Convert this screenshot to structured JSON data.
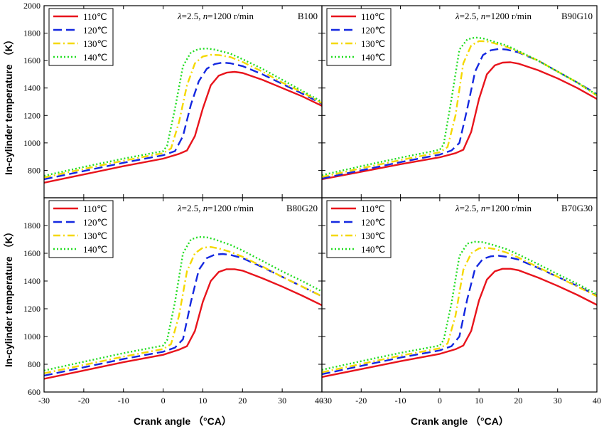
{
  "figure": {
    "ylabel": "In-cylinder temperature （K）",
    "xlabel": "Crank angle （°CA）"
  },
  "chart_data": [
    {
      "type": "line",
      "panel_label": "B100",
      "condition_text": "λ=2.5, n=1200 r/min",
      "xlim": [
        -30,
        40
      ],
      "ylim": [
        600,
        2000
      ],
      "x_ticks": [
        -30,
        -20,
        -10,
        0,
        10,
        20,
        30,
        40
      ],
      "y_ticks": [
        800,
        1000,
        1200,
        1400,
        1600,
        1800,
        2000
      ],
      "legend_position": "top-left",
      "series": [
        {
          "name": "110℃",
          "color": "#e8141c",
          "dash": "solid",
          "x": [
            -30,
            -20,
            -10,
            0,
            4,
            6,
            8,
            10,
            12,
            14,
            16,
            18,
            20,
            25,
            30,
            35,
            40
          ],
          "y": [
            710,
            770,
            830,
            885,
            920,
            945,
            1050,
            1250,
            1420,
            1490,
            1512,
            1518,
            1510,
            1460,
            1400,
            1340,
            1270
          ]
        },
        {
          "name": "120℃",
          "color": "#1428e0",
          "dash": "dash",
          "x": [
            -30,
            -20,
            -10,
            0,
            3,
            5,
            7,
            9,
            11,
            13,
            15,
            17,
            20,
            25,
            30,
            35,
            40
          ],
          "y": [
            735,
            795,
            855,
            910,
            940,
            1050,
            1280,
            1450,
            1540,
            1575,
            1585,
            1580,
            1560,
            1500,
            1430,
            1360,
            1285
          ]
        },
        {
          "name": "130℃",
          "color": "#f5d800",
          "dash": "dashdot",
          "x": [
            -30,
            -20,
            -10,
            0,
            2,
            4,
            6,
            8,
            10,
            12,
            14,
            17,
            20,
            25,
            30,
            35,
            40
          ],
          "y": [
            748,
            810,
            870,
            925,
            960,
            1150,
            1420,
            1580,
            1630,
            1642,
            1640,
            1625,
            1590,
            1520,
            1440,
            1370,
            1290
          ]
        },
        {
          "name": "140℃",
          "color": "#22dd22",
          "dash": "dot",
          "x": [
            -30,
            -20,
            -10,
            0,
            1,
            3,
            5,
            7,
            9,
            11,
            13,
            17,
            20,
            25,
            30,
            35,
            40
          ],
          "y": [
            760,
            825,
            885,
            940,
            980,
            1250,
            1560,
            1660,
            1685,
            1688,
            1680,
            1650,
            1610,
            1540,
            1460,
            1380,
            1300
          ]
        }
      ]
    },
    {
      "type": "line",
      "panel_label": "B90G10",
      "condition_text": "λ=2.5, n=1200 r/min",
      "xlim": [
        -30,
        40
      ],
      "ylim": [
        600,
        2000
      ],
      "x_ticks": [
        -30,
        -20,
        -10,
        0,
        10,
        20,
        30,
        40
      ],
      "y_ticks": [
        800,
        1000,
        1200,
        1400,
        1600,
        1800,
        2000
      ],
      "legend_position": "top-left",
      "series": [
        {
          "name": "110℃",
          "color": "#e8141c",
          "dash": "solid",
          "x": [
            -30,
            -20,
            -10,
            0,
            4,
            6,
            8,
            10,
            12,
            14,
            16,
            18,
            20,
            25,
            30,
            35,
            40
          ],
          "y": [
            735,
            790,
            845,
            895,
            925,
            950,
            1080,
            1320,
            1500,
            1565,
            1585,
            1588,
            1578,
            1530,
            1470,
            1400,
            1320
          ]
        },
        {
          "name": "120℃",
          "color": "#1428e0",
          "dash": "dash",
          "x": [
            -30,
            -20,
            -10,
            0,
            3,
            5,
            7,
            9,
            11,
            13,
            15,
            17,
            20,
            25,
            30,
            35,
            40
          ],
          "y": [
            740,
            800,
            860,
            915,
            945,
            1000,
            1250,
            1520,
            1640,
            1675,
            1685,
            1680,
            1660,
            1600,
            1520,
            1440,
            1355
          ]
        },
        {
          "name": "130℃",
          "color": "#f5d800",
          "dash": "dashdot",
          "x": [
            -30,
            -20,
            -10,
            0,
            2,
            4,
            6,
            8,
            10,
            12,
            14,
            17,
            20,
            25,
            30,
            35,
            40
          ],
          "y": [
            752,
            815,
            875,
            932,
            970,
            1200,
            1580,
            1710,
            1742,
            1740,
            1725,
            1700,
            1665,
            1600,
            1520,
            1440,
            1345
          ]
        },
        {
          "name": "140℃",
          "color": "#22dd22",
          "dash": "dot",
          "x": [
            -30,
            -20,
            -10,
            0,
            1,
            3,
            5,
            7,
            9,
            11,
            13,
            17,
            20,
            25,
            30,
            35,
            40
          ],
          "y": [
            765,
            830,
            892,
            950,
            990,
            1320,
            1680,
            1755,
            1768,
            1762,
            1745,
            1710,
            1670,
            1600,
            1520,
            1440,
            1350
          ]
        }
      ]
    },
    {
      "type": "line",
      "panel_label": "B80G20",
      "condition_text": "λ=2.5, n=1200 r/min",
      "xlim": [
        -30,
        40
      ],
      "ylim": [
        600,
        2000
      ],
      "x_ticks": [
        -30,
        -20,
        -10,
        0,
        10,
        20,
        30,
        40
      ],
      "y_ticks": [
        600,
        800,
        1000,
        1200,
        1400,
        1600,
        1800
      ],
      "legend_position": "top-left",
      "series": [
        {
          "name": "110℃",
          "color": "#e8141c",
          "dash": "solid",
          "x": [
            -30,
            -20,
            -10,
            0,
            4,
            6,
            8,
            10,
            12,
            14,
            16,
            18,
            20,
            25,
            30,
            35,
            40
          ],
          "y": [
            695,
            755,
            815,
            868,
            905,
            930,
            1040,
            1250,
            1400,
            1465,
            1485,
            1485,
            1475,
            1420,
            1360,
            1295,
            1225
          ]
        },
        {
          "name": "120℃",
          "color": "#1428e0",
          "dash": "dash",
          "x": [
            -30,
            -20,
            -10,
            0,
            3,
            5,
            7,
            9,
            11,
            13,
            15,
            17,
            20,
            25,
            30,
            35,
            40
          ],
          "y": [
            718,
            778,
            838,
            890,
            920,
            980,
            1250,
            1480,
            1565,
            1590,
            1595,
            1588,
            1565,
            1500,
            1430,
            1360,
            1290
          ]
        },
        {
          "name": "130℃",
          "color": "#f5d800",
          "dash": "dashdot",
          "x": [
            -30,
            -20,
            -10,
            0,
            2,
            4,
            6,
            8,
            10,
            12,
            14,
            17,
            20,
            25,
            30,
            35,
            40
          ],
          "y": [
            735,
            795,
            855,
            910,
            945,
            1150,
            1470,
            1600,
            1640,
            1645,
            1635,
            1610,
            1575,
            1505,
            1430,
            1360,
            1290
          ]
        },
        {
          "name": "140℃",
          "color": "#22dd22",
          "dash": "dot",
          "x": [
            -30,
            -20,
            -10,
            0,
            1,
            3,
            5,
            7,
            9,
            11,
            13,
            17,
            20,
            25,
            30,
            35,
            40
          ],
          "y": [
            755,
            818,
            880,
            935,
            975,
            1250,
            1600,
            1700,
            1718,
            1715,
            1700,
            1660,
            1620,
            1545,
            1470,
            1400,
            1325
          ]
        }
      ]
    },
    {
      "type": "line",
      "panel_label": "B70G30",
      "condition_text": "λ=2.5, n=1200 r/min",
      "xlim": [
        -30,
        40
      ],
      "ylim": [
        600,
        2000
      ],
      "x_ticks": [
        -30,
        -20,
        -10,
        0,
        10,
        20,
        30,
        40
      ],
      "y_ticks": [
        600,
        800,
        1000,
        1200,
        1400,
        1600,
        1800
      ],
      "legend_position": "top-left",
      "series": [
        {
          "name": "110℃",
          "color": "#e8141c",
          "dash": "solid",
          "x": [
            -30,
            -20,
            -10,
            0,
            4,
            6,
            8,
            10,
            12,
            14,
            16,
            18,
            20,
            25,
            30,
            35,
            40
          ],
          "y": [
            708,
            765,
            822,
            875,
            908,
            935,
            1040,
            1260,
            1410,
            1470,
            1488,
            1488,
            1478,
            1425,
            1365,
            1300,
            1228
          ]
        },
        {
          "name": "120℃",
          "color": "#1428e0",
          "dash": "dash",
          "x": [
            -30,
            -20,
            -10,
            0,
            3,
            5,
            7,
            9,
            11,
            13,
            15,
            17,
            20,
            25,
            30,
            35,
            40
          ],
          "y": [
            728,
            788,
            848,
            900,
            930,
            1000,
            1270,
            1490,
            1560,
            1578,
            1582,
            1575,
            1555,
            1495,
            1430,
            1365,
            1295
          ]
        },
        {
          "name": "130℃",
          "color": "#f5d800",
          "dash": "dashdot",
          "x": [
            -30,
            -20,
            -10,
            0,
            2,
            4,
            6,
            8,
            10,
            12,
            14,
            17,
            20,
            25,
            30,
            35,
            40
          ],
          "y": [
            742,
            802,
            862,
            915,
            950,
            1150,
            1480,
            1600,
            1635,
            1640,
            1630,
            1605,
            1570,
            1500,
            1430,
            1360,
            1290
          ]
        },
        {
          "name": "140℃",
          "color": "#22dd22",
          "dash": "dot",
          "x": [
            -30,
            -20,
            -10,
            0,
            1,
            3,
            5,
            7,
            9,
            11,
            13,
            17,
            20,
            25,
            30,
            35,
            40
          ],
          "y": [
            760,
            822,
            882,
            935,
            975,
            1240,
            1580,
            1670,
            1683,
            1680,
            1665,
            1630,
            1592,
            1522,
            1450,
            1380,
            1305
          ]
        }
      ]
    }
  ]
}
